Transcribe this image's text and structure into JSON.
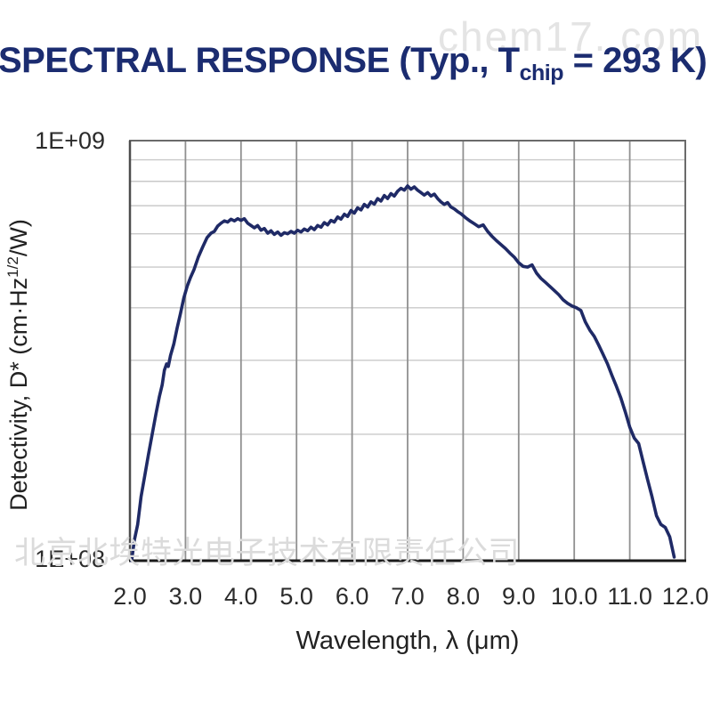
{
  "watermarks": {
    "top": "chem17. com",
    "bottom": "北京北埃特光电子技术有限责任公司"
  },
  "title": {
    "prefix": "SPECTRAL RESPONSE (Typ., T",
    "subscript": "chip",
    "suffix": " = 293 K)"
  },
  "colors": {
    "title_text": "#1b2c70",
    "curve": "#1f2a66",
    "grid_vertical": "#909090",
    "grid_horizontal": "#c9c9c9",
    "plot_border": "#6b6b6b",
    "axis_bottom": "#1a1a1a",
    "axis_left": "#4d4d4d",
    "tick_text": "#2b2b2b",
    "watermark_top": "#e4e4e4",
    "watermark_bottom": "#dbdbdb"
  },
  "chart_data": {
    "type": "line",
    "title": "SPECTRAL RESPONSE (Typ., Tchip = 293 K)",
    "xlabel": "Wavelength, λ (μm)",
    "ylabel": "Detectivity, D* (cm·Hz1/2/W)",
    "ylabel_parts": [
      "Detectivity, D* (cm·Hz",
      "1/2",
      "/W)"
    ],
    "xscale": "linear",
    "yscale": "log",
    "xlim": [
      2.0,
      12.0
    ],
    "ylim": [
      100000000.0,
      1000000000.0
    ],
    "x_tick_values": [
      2,
      3,
      4,
      5,
      6,
      7,
      8,
      9,
      10,
      11,
      12
    ],
    "x_tick_labels": [
      "2.0",
      "3.0",
      "4.0",
      "5.0",
      "6.0",
      "7.0",
      "8.0",
      "9.0",
      "10.0",
      "11.0",
      "12.0"
    ],
    "y_tick_labels": [
      "1E+08",
      "1E+09"
    ],
    "grid": {
      "vertical_at_um": [
        3,
        4,
        5,
        6,
        7,
        8,
        9,
        10,
        11
      ],
      "horizontal_minor_1e8": [
        2,
        3,
        4,
        5,
        6,
        7,
        8,
        9
      ],
      "legend": "none"
    },
    "series": [
      {
        "name": "Detectivity D*",
        "color": "#1f2a66",
        "units": "values in 1e8 cm·Hz^1/2/W",
        "points": [
          [
            2.03,
            1.0
          ],
          [
            2.08,
            1.12
          ],
          [
            2.14,
            1.22
          ],
          [
            2.2,
            1.42
          ],
          [
            2.27,
            1.6
          ],
          [
            2.33,
            1.78
          ],
          [
            2.4,
            2.0
          ],
          [
            2.47,
            2.24
          ],
          [
            2.53,
            2.46
          ],
          [
            2.58,
            2.62
          ],
          [
            2.62,
            2.84
          ],
          [
            2.66,
            2.94
          ],
          [
            2.69,
            2.9
          ],
          [
            2.73,
            3.08
          ],
          [
            2.79,
            3.28
          ],
          [
            2.85,
            3.58
          ],
          [
            2.91,
            3.88
          ],
          [
            2.97,
            4.22
          ],
          [
            3.03,
            4.5
          ],
          [
            3.09,
            4.72
          ],
          [
            3.15,
            4.92
          ],
          [
            3.23,
            5.28
          ],
          [
            3.31,
            5.58
          ],
          [
            3.39,
            5.88
          ],
          [
            3.46,
            6.02
          ],
          [
            3.52,
            6.08
          ],
          [
            3.58,
            6.26
          ],
          [
            3.64,
            6.36
          ],
          [
            3.7,
            6.44
          ],
          [
            3.76,
            6.4
          ],
          [
            3.82,
            6.5
          ],
          [
            3.88,
            6.44
          ],
          [
            3.94,
            6.52
          ],
          [
            4.0,
            6.46
          ],
          [
            4.06,
            6.52
          ],
          [
            4.12,
            6.36
          ],
          [
            4.18,
            6.28
          ],
          [
            4.24,
            6.2
          ],
          [
            4.3,
            6.28
          ],
          [
            4.36,
            6.12
          ],
          [
            4.42,
            6.18
          ],
          [
            4.48,
            6.02
          ],
          [
            4.54,
            6.1
          ],
          [
            4.6,
            5.98
          ],
          [
            4.66,
            6.06
          ],
          [
            4.72,
            5.95
          ],
          [
            4.78,
            6.04
          ],
          [
            4.84,
            6.0
          ],
          [
            4.9,
            6.08
          ],
          [
            4.96,
            6.02
          ],
          [
            5.02,
            6.12
          ],
          [
            5.08,
            6.06
          ],
          [
            5.14,
            6.16
          ],
          [
            5.2,
            6.1
          ],
          [
            5.26,
            6.22
          ],
          [
            5.32,
            6.14
          ],
          [
            5.38,
            6.28
          ],
          [
            5.44,
            6.22
          ],
          [
            5.5,
            6.38
          ],
          [
            5.56,
            6.3
          ],
          [
            5.62,
            6.46
          ],
          [
            5.68,
            6.4
          ],
          [
            5.74,
            6.58
          ],
          [
            5.8,
            6.5
          ],
          [
            5.86,
            6.68
          ],
          [
            5.92,
            6.6
          ],
          [
            5.98,
            6.82
          ],
          [
            6.04,
            6.72
          ],
          [
            6.1,
            6.92
          ],
          [
            6.16,
            6.84
          ],
          [
            6.22,
            7.05
          ],
          [
            6.28,
            6.95
          ],
          [
            6.34,
            7.15
          ],
          [
            6.4,
            7.06
          ],
          [
            6.46,
            7.28
          ],
          [
            6.52,
            7.18
          ],
          [
            6.58,
            7.4
          ],
          [
            6.64,
            7.28
          ],
          [
            6.7,
            7.48
          ],
          [
            6.76,
            7.38
          ],
          [
            6.82,
            7.58
          ],
          [
            6.88,
            7.7
          ],
          [
            6.94,
            7.62
          ],
          [
            7.0,
            7.8
          ],
          [
            7.06,
            7.66
          ],
          [
            7.12,
            7.76
          ],
          [
            7.18,
            7.62
          ],
          [
            7.24,
            7.52
          ],
          [
            7.3,
            7.42
          ],
          [
            7.36,
            7.52
          ],
          [
            7.42,
            7.38
          ],
          [
            7.48,
            7.46
          ],
          [
            7.54,
            7.28
          ],
          [
            7.6,
            7.15
          ],
          [
            7.66,
            7.05
          ],
          [
            7.72,
            7.12
          ],
          [
            7.78,
            6.95
          ],
          [
            7.84,
            6.88
          ],
          [
            7.9,
            6.78
          ],
          [
            7.96,
            6.7
          ],
          [
            8.04,
            6.56
          ],
          [
            8.12,
            6.44
          ],
          [
            8.2,
            6.34
          ],
          [
            8.28,
            6.24
          ],
          [
            8.36,
            6.3
          ],
          [
            8.44,
            6.08
          ],
          [
            8.52,
            5.92
          ],
          [
            8.6,
            5.78
          ],
          [
            8.68,
            5.66
          ],
          [
            8.76,
            5.54
          ],
          [
            8.84,
            5.4
          ],
          [
            8.92,
            5.28
          ],
          [
            9.0,
            5.12
          ],
          [
            9.08,
            5.02
          ],
          [
            9.16,
            5.0
          ],
          [
            9.24,
            5.06
          ],
          [
            9.32,
            4.84
          ],
          [
            9.4,
            4.7
          ],
          [
            9.48,
            4.6
          ],
          [
            9.56,
            4.5
          ],
          [
            9.64,
            4.4
          ],
          [
            9.72,
            4.3
          ],
          [
            9.8,
            4.18
          ],
          [
            9.88,
            4.1
          ],
          [
            9.96,
            4.04
          ],
          [
            10.04,
            4.0
          ],
          [
            10.12,
            3.94
          ],
          [
            10.2,
            3.7
          ],
          [
            10.28,
            3.54
          ],
          [
            10.36,
            3.42
          ],
          [
            10.44,
            3.26
          ],
          [
            10.52,
            3.1
          ],
          [
            10.6,
            2.94
          ],
          [
            10.68,
            2.76
          ],
          [
            10.76,
            2.6
          ],
          [
            10.84,
            2.44
          ],
          [
            10.92,
            2.26
          ],
          [
            11.0,
            2.08
          ],
          [
            11.08,
            1.96
          ],
          [
            11.16,
            1.9
          ],
          [
            11.24,
            1.72
          ],
          [
            11.32,
            1.56
          ],
          [
            11.4,
            1.42
          ],
          [
            11.48,
            1.28
          ],
          [
            11.56,
            1.22
          ],
          [
            11.64,
            1.2
          ],
          [
            11.72,
            1.14
          ],
          [
            11.8,
            1.02
          ]
        ]
      }
    ]
  }
}
